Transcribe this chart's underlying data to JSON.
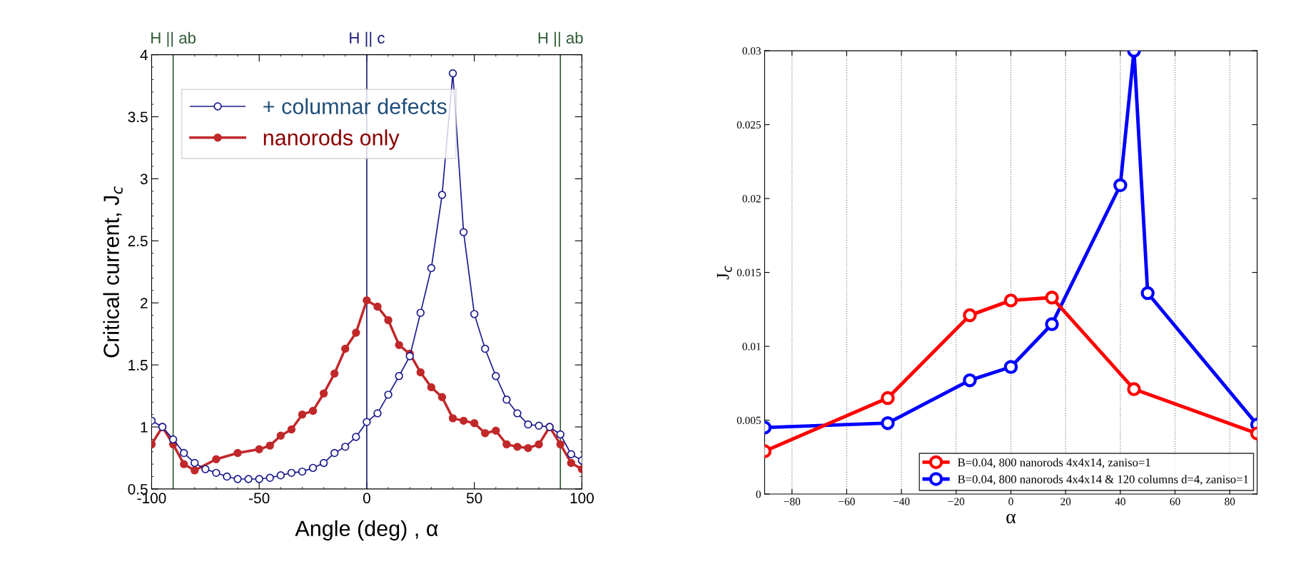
{
  "chart_data": [
    {
      "type": "line",
      "xlabel": "Angle (deg) , α",
      "ylabel": "Critical current, J$_{c}$",
      "xlim": [
        -100,
        100
      ],
      "xticks": [
        -100,
        -50,
        0,
        50,
        100
      ],
      "ylim": [
        0.5,
        4
      ],
      "yticks": [
        0.5,
        1,
        1.5,
        2,
        2.5,
        3,
        3.5,
        4
      ],
      "marker": "circle",
      "legend": "top left",
      "grid": false,
      "ref_lines": [
        {
          "axis": "x",
          "value": -90,
          "label": "H || ab",
          "color": "#2f5a35"
        },
        {
          "axis": "x",
          "value": 0,
          "label": "H || c",
          "color": "#1d1d7a"
        },
        {
          "axis": "x",
          "value": 90,
          "label": "H || ab",
          "color": "#2f5a35"
        }
      ],
      "series": [
        {
          "name": "+ columnar defects",
          "color": "#1a1a8c",
          "x": [
            -100,
            -95,
            -90,
            -85,
            -80,
            -75,
            -70,
            -65,
            -60,
            -55,
            -50,
            -45,
            -40,
            -35,
            -30,
            -25,
            -20,
            -15,
            -10,
            -5,
            0,
            5,
            10,
            15,
            20,
            25,
            30,
            35,
            40,
            45,
            50,
            55,
            60,
            65,
            70,
            75,
            80,
            85,
            90,
            95,
            100
          ],
          "values": [
            1.05,
            1.0,
            0.9,
            0.79,
            0.71,
            0.66,
            0.63,
            0.6,
            0.58,
            0.58,
            0.58,
            0.59,
            0.61,
            0.63,
            0.64,
            0.67,
            0.71,
            0.79,
            0.84,
            0.92,
            1.04,
            1.11,
            1.26,
            1.41,
            1.57,
            1.92,
            2.28,
            2.87,
            3.85,
            2.57,
            1.91,
            1.63,
            1.41,
            1.22,
            1.11,
            1.02,
            1.01,
            1.0,
            0.94,
            0.78,
            0.73
          ]
        },
        {
          "name": "nanorods only",
          "color": "#c0282a",
          "x": [
            -100,
            -95,
            -90,
            -85,
            -80,
            -70,
            -60,
            -50,
            -45,
            -40,
            -35,
            -30,
            -25,
            -20,
            -15,
            -10,
            -5,
            0,
            5,
            10,
            15,
            20,
            25,
            30,
            35,
            40,
            45,
            50,
            55,
            60,
            65,
            70,
            75,
            80,
            85,
            90,
            95,
            100
          ],
          "values": [
            0.86,
            1.0,
            0.86,
            0.7,
            0.65,
            0.74,
            0.79,
            0.82,
            0.85,
            0.93,
            0.98,
            1.1,
            1.13,
            1.27,
            1.43,
            1.63,
            1.76,
            2.02,
            1.97,
            1.86,
            1.66,
            1.59,
            1.44,
            1.32,
            1.24,
            1.07,
            1.05,
            1.03,
            0.95,
            0.97,
            0.86,
            0.84,
            0.83,
            0.86,
            1.0,
            0.86,
            0.71,
            0.66
          ]
        }
      ]
    },
    {
      "type": "line",
      "xlabel": "α",
      "ylabel": "J$_{c}$",
      "xlim": [
        -90,
        90
      ],
      "xticks": [
        {
          "value": -80,
          "label": "−80"
        },
        {
          "value": -60,
          "label": "−60"
        },
        {
          "value": -40,
          "label": "−40"
        },
        {
          "value": -20,
          "label": "−20"
        },
        0,
        20,
        40,
        60,
        80
      ],
      "ylim": [
        0,
        0.03
      ],
      "yticks": [
        0,
        0.005,
        0.01,
        0.015,
        0.02,
        0.025,
        0.03
      ],
      "marker": "circle",
      "legend": "bottom right",
      "grid": "x",
      "series": [
        {
          "name": "B=0.04, 800 nanorods 4x4x14, zaniso=1",
          "color": "#ff0000",
          "x": [
            -90,
            -45,
            -15,
            0,
            15,
            45,
            90
          ],
          "values": [
            0.0029,
            0.0065,
            0.0121,
            0.0131,
            0.0133,
            0.0071,
            0.0041
          ]
        },
        {
          "name": "B=0.04, 800 nanorods 4x4x14 & 120 columns d=4, zaniso=1",
          "color": "#0000ff",
          "x": [
            -90,
            -45,
            -15,
            0,
            15,
            40,
            45,
            50,
            90
          ],
          "values": [
            0.0045,
            0.0048,
            0.0077,
            0.0086,
            0.0115,
            0.0209,
            0.03,
            0.0136,
            0.0047
          ]
        }
      ]
    }
  ]
}
